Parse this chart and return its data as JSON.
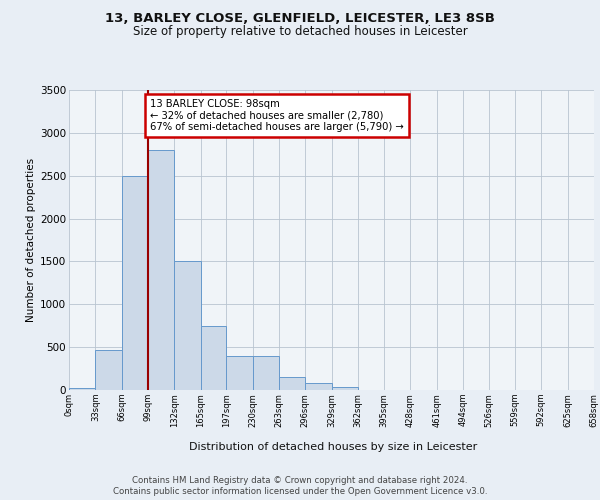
{
  "title1": "13, BARLEY CLOSE, GLENFIELD, LEICESTER, LE3 8SB",
  "title2": "Size of property relative to detached houses in Leicester",
  "xlabel": "Distribution of detached houses by size in Leicester",
  "ylabel": "Number of detached properties",
  "bin_edges": [
    0,
    33,
    66,
    99,
    132,
    165,
    197,
    230,
    263,
    296,
    329,
    362,
    395,
    428,
    461,
    494,
    526,
    559,
    592,
    625,
    658
  ],
  "bar_heights": [
    20,
    470,
    2500,
    2800,
    1500,
    750,
    400,
    400,
    150,
    80,
    40,
    0,
    0,
    0,
    0,
    0,
    0,
    0,
    0,
    0
  ],
  "bar_color": "#ccd9e8",
  "bar_edge_color": "#6699cc",
  "vline_x": 99,
  "vline_color": "#990000",
  "annotation_text": "13 BARLEY CLOSE: 98sqm\n← 32% of detached houses are smaller (2,780)\n67% of semi-detached houses are larger (5,790) →",
  "annotation_box_color": "#ffffff",
  "annotation_box_edge": "#cc0000",
  "ylim": [
    0,
    3500
  ],
  "yticks": [
    0,
    500,
    1000,
    1500,
    2000,
    2500,
    3000,
    3500
  ],
  "tick_labels": [
    "0sqm",
    "33sqm",
    "66sqm",
    "99sqm",
    "132sqm",
    "165sqm",
    "197sqm",
    "230sqm",
    "263sqm",
    "296sqm",
    "329sqm",
    "362sqm",
    "395sqm",
    "428sqm",
    "461sqm",
    "494sqm",
    "526sqm",
    "559sqm",
    "592sqm",
    "625sqm",
    "658sqm"
  ],
  "footer1": "Contains HM Land Registry data © Crown copyright and database right 2024.",
  "footer2": "Contains public sector information licensed under the Open Government Licence v3.0.",
  "background_color": "#e8eef5",
  "plot_bg_color": "#f0f4f8",
  "title1_fontsize": 9.5,
  "title2_fontsize": 8.5
}
